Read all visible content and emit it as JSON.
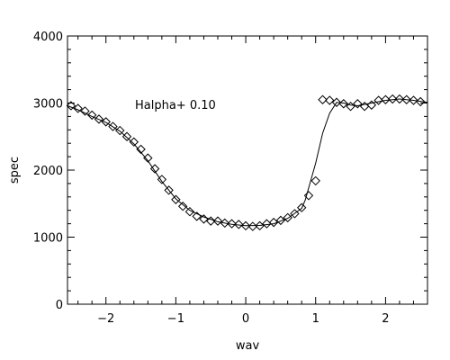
{
  "chart_data": {
    "type": "scatter",
    "annotation": "Halpha+ 0.10",
    "xlabel": "wav",
    "ylabel": "spec",
    "xlim": [
      -2.55,
      2.6
    ],
    "ylim": [
      0,
      4000
    ],
    "xticks": [
      -2,
      -1,
      0,
      1,
      2
    ],
    "xtick_labels": [
      "−2",
      "−1",
      "0",
      "1",
      "2"
    ],
    "yticks": [
      0,
      1000,
      2000,
      3000,
      4000
    ],
    "ytick_labels": [
      "0",
      "1000",
      "2000",
      "3000",
      "4000"
    ],
    "grid": false,
    "series": [
      {
        "marker": "diamond",
        "x": [
          -2.5,
          -2.4,
          -2.3,
          -2.2,
          -2.1,
          -2.0,
          -1.9,
          -1.8,
          -1.7,
          -1.6,
          -1.5,
          -1.4,
          -1.3,
          -1.2,
          -1.1,
          -1.0,
          -0.9,
          -0.8,
          -0.7,
          -0.6,
          -0.5,
          -0.4,
          -0.3,
          -0.2,
          -0.1,
          0.0,
          0.1,
          0.2,
          0.3,
          0.4,
          0.5,
          0.6,
          0.7,
          0.8,
          0.9,
          1.0,
          1.1,
          1.2,
          1.3,
          1.4,
          1.5,
          1.6,
          1.7,
          1.8,
          1.9,
          2.0,
          2.1,
          2.2,
          2.3,
          2.4,
          2.5
        ],
        "y": [
          2960,
          2920,
          2880,
          2820,
          2760,
          2720,
          2650,
          2590,
          2500,
          2420,
          2310,
          2180,
          2020,
          1860,
          1700,
          1560,
          1460,
          1380,
          1310,
          1270,
          1240,
          1240,
          1210,
          1200,
          1190,
          1170,
          1160,
          1170,
          1200,
          1220,
          1250,
          1290,
          1350,
          1440,
          1620,
          1840,
          3050,
          3040,
          3010,
          2990,
          2950,
          2990,
          2950,
          2970,
          3040,
          3050,
          3060,
          3060,
          3050,
          3040,
          3020
        ]
      },
      {
        "marker": "line",
        "x": [
          -2.55,
          -2.4,
          -2.2,
          -2.0,
          -1.8,
          -1.6,
          -1.4,
          -1.2,
          -1.0,
          -0.8,
          -0.6,
          -0.4,
          -0.2,
          0.0,
          0.2,
          0.4,
          0.6,
          0.8,
          0.85,
          1.0,
          1.1,
          1.2,
          1.3,
          1.4,
          1.5,
          1.6,
          1.7,
          1.8,
          2.0,
          2.2,
          2.4,
          2.6
        ],
        "y": [
          2960,
          2900,
          2800,
          2710,
          2580,
          2390,
          2140,
          1830,
          1570,
          1400,
          1300,
          1230,
          1190,
          1170,
          1175,
          1200,
          1280,
          1430,
          1550,
          2100,
          2550,
          2850,
          3010,
          3000,
          2970,
          2960,
          2980,
          3000,
          3040,
          3060,
          3040,
          3010
        ]
      }
    ]
  }
}
